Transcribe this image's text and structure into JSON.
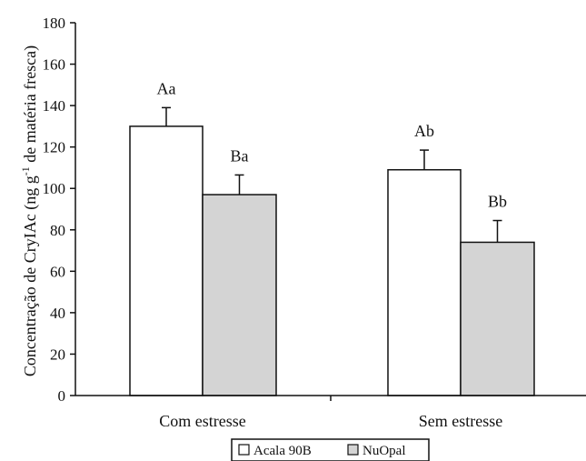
{
  "chart_data": {
    "type": "bar",
    "categories": [
      "Com estresse",
      "Sem estresse"
    ],
    "series": [
      {
        "name": "Acala 90B",
        "values": [
          130,
          109
        ],
        "errors": [
          9,
          9.5
        ],
        "labels": [
          "Aa",
          "Ab"
        ],
        "color": "#ffffff"
      },
      {
        "name": "NuOpal",
        "values": [
          97,
          74
        ],
        "errors": [
          9.5,
          10.5
        ],
        "labels": [
          "Ba",
          "Bb"
        ],
        "color": "#d4d4d4"
      }
    ],
    "ylabel_main": "Concentração de CryIAc (ng g",
    "ylabel_sup": "-1",
    "ylabel_rest": " de matéria fresca)",
    "ylim": [
      0,
      180
    ],
    "yticks": [
      0,
      20,
      40,
      60,
      80,
      100,
      120,
      140,
      160,
      180
    ],
    "legend_position": "bottom-center",
    "grid": false
  }
}
